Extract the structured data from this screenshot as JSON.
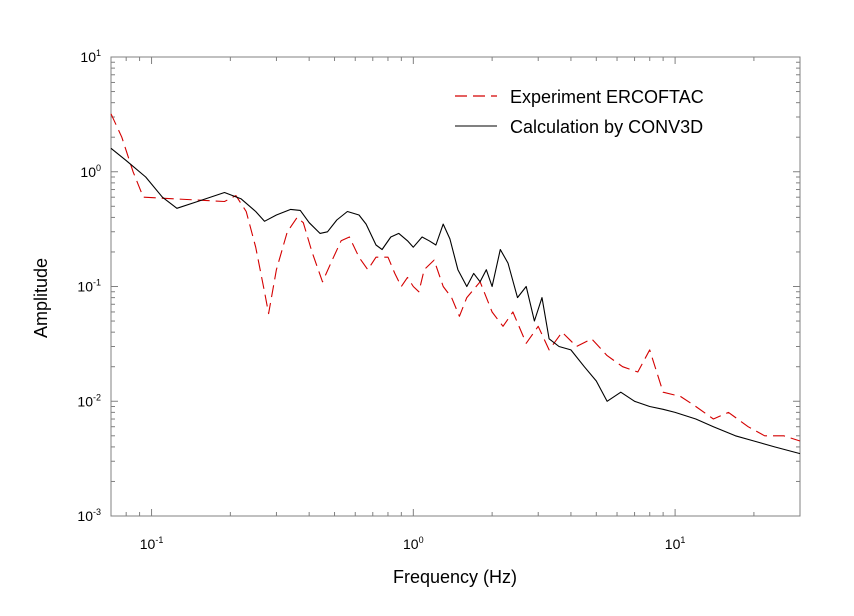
{
  "chart_data": {
    "type": "line",
    "title": "",
    "xlabel": "Frequency (Hz)",
    "ylabel": "Amplitude",
    "xscale": "log",
    "yscale": "log",
    "xlim": [
      0.07,
      30
    ],
    "ylim": [
      0.001,
      10
    ],
    "x_ticks": [
      {
        "value": 0.1,
        "base": "10",
        "exp": "-1"
      },
      {
        "value": 1,
        "base": "10",
        "exp": "0"
      },
      {
        "value": 10,
        "base": "10",
        "exp": "1"
      }
    ],
    "y_ticks": [
      {
        "value": 0.001,
        "base": "10",
        "exp": "-3"
      },
      {
        "value": 0.01,
        "base": "10",
        "exp": "-2"
      },
      {
        "value": 0.1,
        "base": "10",
        "exp": "-1"
      },
      {
        "value": 1,
        "base": "10",
        "exp": "0"
      },
      {
        "value": 10,
        "base": "10",
        "exp": "1"
      }
    ],
    "grid": false,
    "legend_position": "top-right",
    "series": [
      {
        "name": "Experiment ERCOFTAC",
        "color": "#d40000",
        "style": "dashed",
        "points": [
          [
            0.07,
            3.2
          ],
          [
            0.077,
            2.0
          ],
          [
            0.085,
            1.0
          ],
          [
            0.093,
            0.6
          ],
          [
            0.19,
            0.55
          ],
          [
            0.21,
            0.62
          ],
          [
            0.23,
            0.45
          ],
          [
            0.25,
            0.22
          ],
          [
            0.27,
            0.09
          ],
          [
            0.28,
            0.058
          ],
          [
            0.3,
            0.14
          ],
          [
            0.33,
            0.3
          ],
          [
            0.36,
            0.4
          ],
          [
            0.38,
            0.36
          ],
          [
            0.41,
            0.2
          ],
          [
            0.45,
            0.11
          ],
          [
            0.49,
            0.17
          ],
          [
            0.53,
            0.25
          ],
          [
            0.57,
            0.27
          ],
          [
            0.62,
            0.18
          ],
          [
            0.67,
            0.14
          ],
          [
            0.72,
            0.18
          ],
          [
            0.8,
            0.18
          ],
          [
            0.85,
            0.13
          ],
          [
            0.9,
            0.1
          ],
          [
            0.95,
            0.12
          ],
          [
            1.0,
            0.1
          ],
          [
            1.05,
            0.09
          ],
          [
            1.1,
            0.14
          ],
          [
            1.2,
            0.17
          ],
          [
            1.3,
            0.1
          ],
          [
            1.4,
            0.08
          ],
          [
            1.5,
            0.055
          ],
          [
            1.6,
            0.08
          ],
          [
            1.8,
            0.11
          ],
          [
            2.0,
            0.06
          ],
          [
            2.2,
            0.045
          ],
          [
            2.4,
            0.06
          ],
          [
            2.7,
            0.032
          ],
          [
            3.0,
            0.045
          ],
          [
            3.3,
            0.028
          ],
          [
            3.7,
            0.04
          ],
          [
            4.2,
            0.03
          ],
          [
            4.8,
            0.035
          ],
          [
            5.5,
            0.025
          ],
          [
            6.3,
            0.02
          ],
          [
            7.2,
            0.018
          ],
          [
            8.0,
            0.028
          ],
          [
            9.0,
            0.012
          ],
          [
            10.5,
            0.011
          ],
          [
            12,
            0.009
          ],
          [
            14,
            0.007
          ],
          [
            16,
            0.008
          ],
          [
            19,
            0.006
          ],
          [
            22,
            0.005
          ],
          [
            26,
            0.005
          ],
          [
            30,
            0.0045
          ]
        ]
      },
      {
        "name": "Calculation by CONV3D",
        "color": "#000000",
        "style": "solid",
        "points": [
          [
            0.07,
            1.6
          ],
          [
            0.08,
            1.25
          ],
          [
            0.095,
            0.9
          ],
          [
            0.11,
            0.6
          ],
          [
            0.125,
            0.48
          ],
          [
            0.15,
            0.55
          ],
          [
            0.19,
            0.66
          ],
          [
            0.22,
            0.58
          ],
          [
            0.25,
            0.45
          ],
          [
            0.27,
            0.37
          ],
          [
            0.3,
            0.42
          ],
          [
            0.34,
            0.47
          ],
          [
            0.37,
            0.46
          ],
          [
            0.4,
            0.36
          ],
          [
            0.44,
            0.29
          ],
          [
            0.47,
            0.3
          ],
          [
            0.51,
            0.38
          ],
          [
            0.56,
            0.45
          ],
          [
            0.62,
            0.42
          ],
          [
            0.66,
            0.35
          ],
          [
            0.72,
            0.23
          ],
          [
            0.76,
            0.21
          ],
          [
            0.82,
            0.27
          ],
          [
            0.88,
            0.29
          ],
          [
            0.95,
            0.25
          ],
          [
            1.0,
            0.22
          ],
          [
            1.08,
            0.27
          ],
          [
            1.15,
            0.25
          ],
          [
            1.22,
            0.23
          ],
          [
            1.3,
            0.35
          ],
          [
            1.38,
            0.26
          ],
          [
            1.48,
            0.14
          ],
          [
            1.6,
            0.1
          ],
          [
            1.7,
            0.13
          ],
          [
            1.8,
            0.11
          ],
          [
            1.9,
            0.14
          ],
          [
            2.0,
            0.1
          ],
          [
            2.15,
            0.21
          ],
          [
            2.3,
            0.16
          ],
          [
            2.5,
            0.08
          ],
          [
            2.7,
            0.1
          ],
          [
            2.9,
            0.05
          ],
          [
            3.1,
            0.08
          ],
          [
            3.3,
            0.035
          ],
          [
            3.6,
            0.03
          ],
          [
            4.0,
            0.028
          ],
          [
            4.5,
            0.02
          ],
          [
            5.0,
            0.015
          ],
          [
            5.5,
            0.01
          ],
          [
            6.2,
            0.012
          ],
          [
            7.0,
            0.01
          ],
          [
            8.0,
            0.009
          ],
          [
            9.0,
            0.0085
          ],
          [
            10,
            0.008
          ],
          [
            12,
            0.007
          ],
          [
            14,
            0.006
          ],
          [
            17,
            0.005
          ],
          [
            20,
            0.0045
          ],
          [
            24,
            0.004
          ],
          [
            30,
            0.0035
          ]
        ]
      }
    ]
  }
}
